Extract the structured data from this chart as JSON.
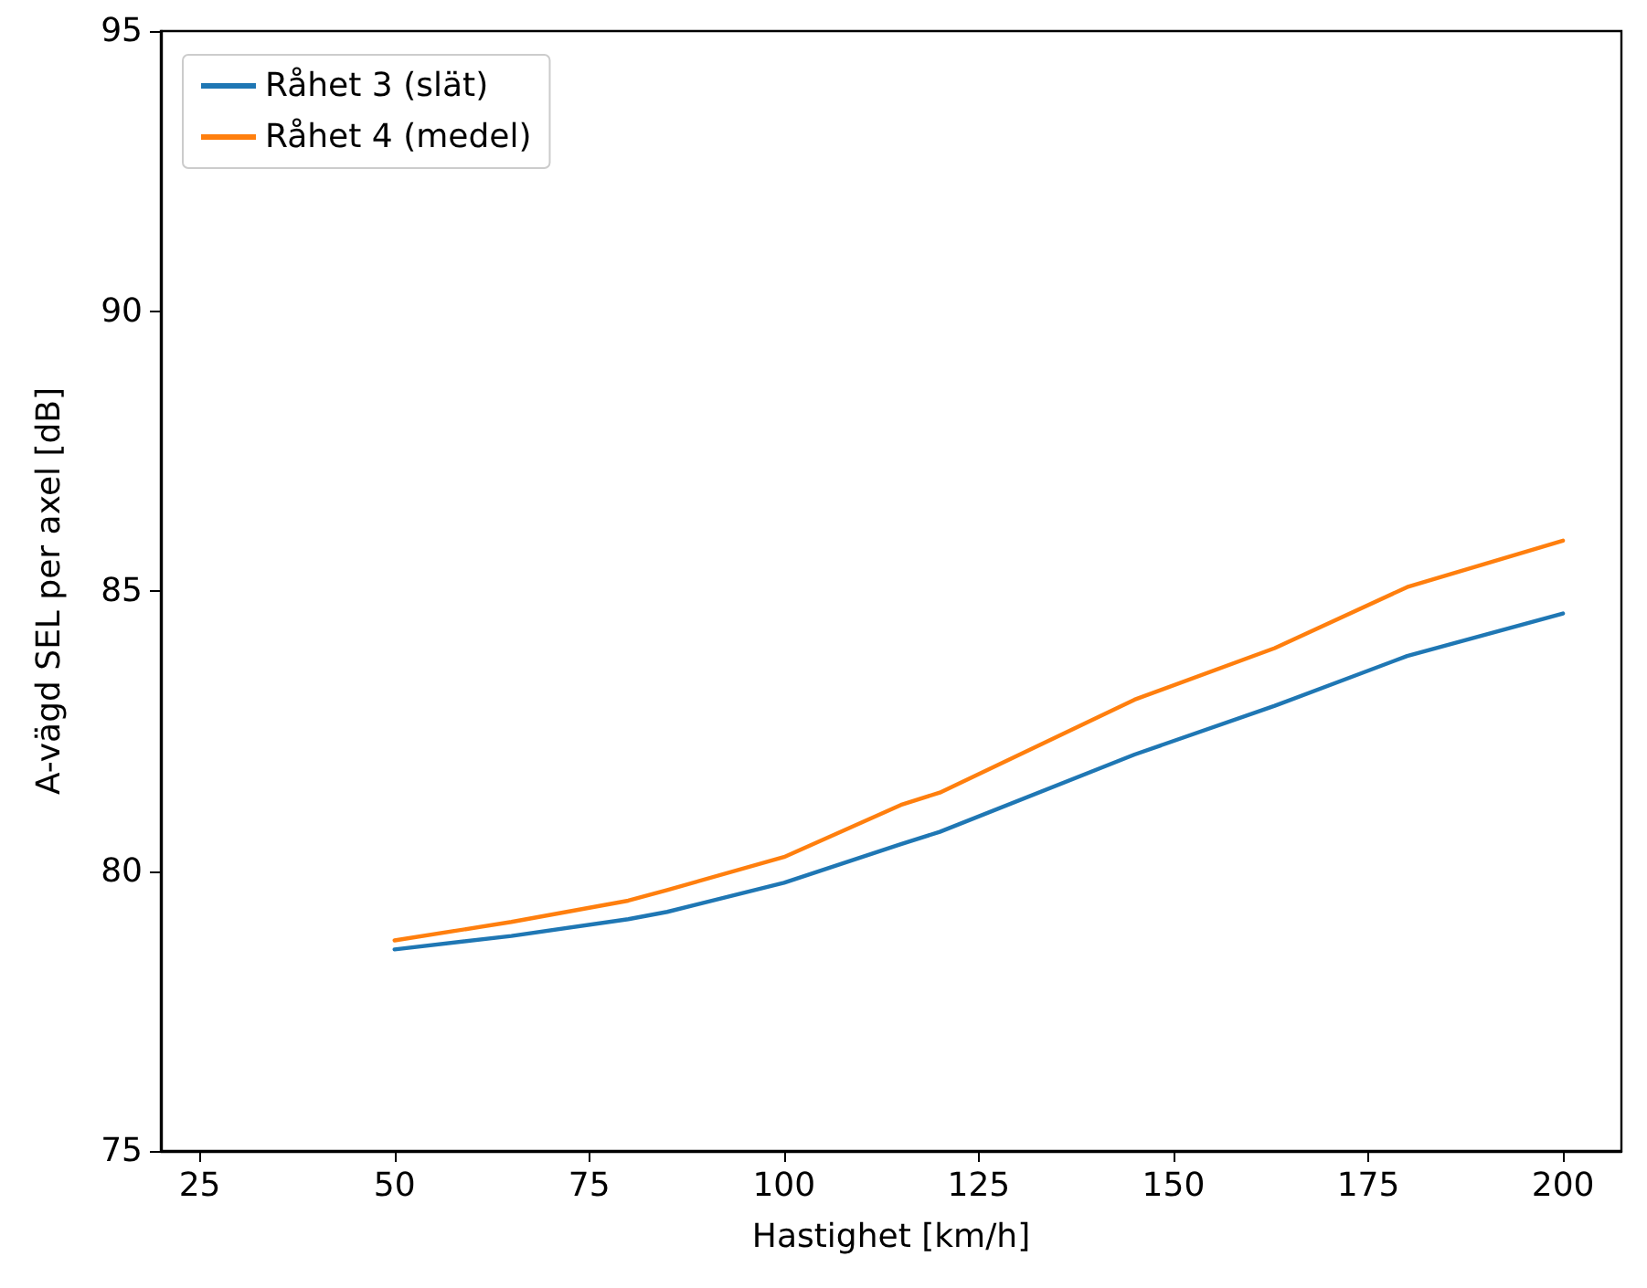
{
  "chart_data": {
    "type": "line",
    "xlabel": "Hastighet [km/h]",
    "ylabel": "A-vägd SEL per axel [dB]",
    "series": [
      {
        "name": "Råhet 3 (slät)",
        "color": "#1f77b4",
        "x": [
          50,
          65,
          80,
          85,
          100,
          115,
          120,
          145,
          163,
          180,
          200
        ],
        "values": [
          78.6,
          78.84,
          79.14,
          79.27,
          79.79,
          80.48,
          80.7,
          82.08,
          82.95,
          83.84,
          84.6
        ]
      },
      {
        "name": "Råhet 4 (medel)",
        "color": "#ff7f0e",
        "x": [
          50,
          65,
          80,
          85,
          100,
          115,
          120,
          145,
          163,
          180,
          200
        ],
        "values": [
          78.76,
          79.09,
          79.47,
          79.66,
          80.25,
          81.18,
          81.4,
          83.06,
          83.98,
          85.07,
          85.9
        ]
      }
    ],
    "xlim": [
      20,
      207.5
    ],
    "xticks": [
      25,
      50,
      75,
      100,
      125,
      150,
      175,
      200
    ],
    "ylim": [
      75,
      95
    ],
    "yticks": [
      75,
      80,
      85,
      90,
      95
    ],
    "grid": false,
    "legend": "top left",
    "marker": "none",
    "line_style": "solid"
  }
}
